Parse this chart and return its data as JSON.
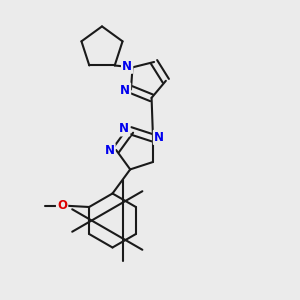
{
  "bg_color": "#ebebeb",
  "bond_color": "#1a1a1a",
  "N_color": "#0000ee",
  "O_color": "#dd0000",
  "lw": 1.5,
  "dbo": 0.012,
  "fs": 8.5,
  "fig_w": 3.0,
  "fig_h": 3.0,
  "dpi": 100,
  "xlim": [
    0.0,
    1.0
  ],
  "ylim": [
    0.0,
    1.0
  ]
}
